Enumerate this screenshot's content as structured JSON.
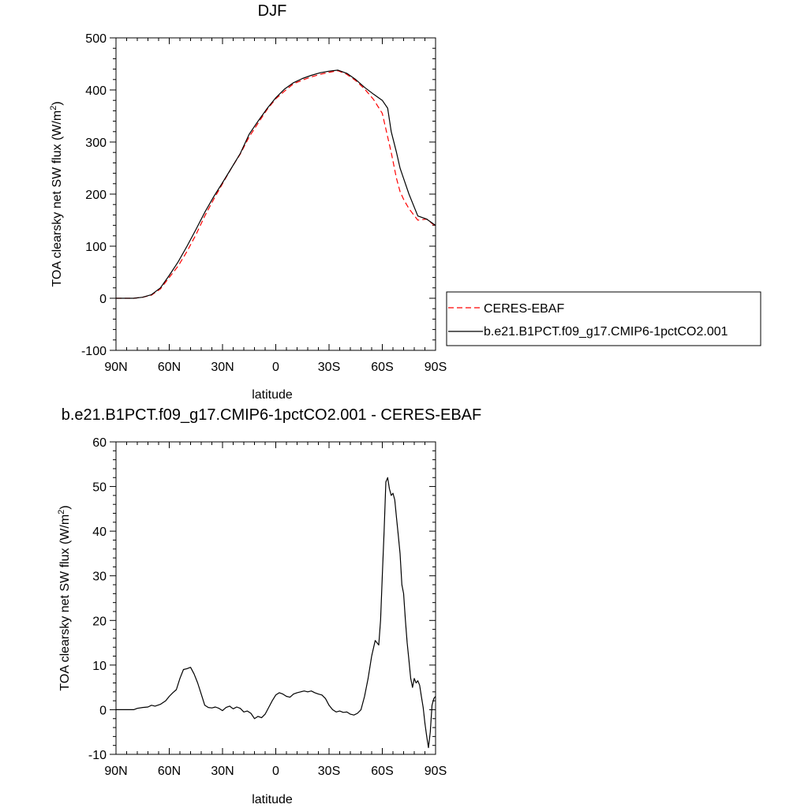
{
  "chart_data": [
    {
      "type": "line",
      "title": "DJF",
      "xlabel": "latitude",
      "ylabel": {
        "main": "TOA clearsky net SW flux (W/m",
        "sup": "2",
        "end": ")"
      },
      "xlim": [
        -90,
        90
      ],
      "ylim": [
        -100,
        500
      ],
      "xticks": [
        -90,
        -60,
        -30,
        0,
        30,
        60,
        90
      ],
      "xticklabels": [
        "90N",
        "60N",
        "30N",
        "0",
        "30S",
        "60S",
        "90S"
      ],
      "yticks": [
        -100,
        0,
        100,
        200,
        300,
        400,
        500
      ],
      "yticklabels": [
        "-100",
        "0",
        "100",
        "200",
        "300",
        "400",
        "500"
      ],
      "grid": false,
      "legend_placement": "right",
      "series": [
        {
          "name": "CERES-EBAF",
          "color": "#ff0000",
          "style": "dashed",
          "x": [
            -90,
            -85,
            -80,
            -75,
            -70,
            -65,
            -60,
            -55,
            -50,
            -45,
            -40,
            -35,
            -30,
            -25,
            -20,
            -15,
            -10,
            -5,
            0,
            5,
            10,
            15,
            20,
            25,
            30,
            35,
            40,
            45,
            50,
            55,
            60,
            65,
            68,
            70,
            72,
            75,
            80,
            85,
            90
          ],
          "y": [
            0,
            0,
            0,
            2,
            6,
            18,
            40,
            62,
            90,
            122,
            158,
            190,
            220,
            250,
            277,
            310,
            336,
            362,
            383,
            398,
            412,
            419,
            425,
            430,
            434,
            437,
            430,
            418,
            402,
            382,
            355,
            280,
            230,
            205,
            190,
            172,
            150,
            152,
            138
          ]
        },
        {
          "name": "b.e21.B1PCT.f09_g17.CMIP6-1pctCO2.001",
          "color": "#000000",
          "style": "solid",
          "x": [
            -90,
            -85,
            -80,
            -75,
            -70,
            -65,
            -60,
            -55,
            -50,
            -45,
            -40,
            -35,
            -30,
            -25,
            -20,
            -15,
            -10,
            -5,
            0,
            5,
            10,
            15,
            20,
            25,
            30,
            35,
            40,
            45,
            50,
            55,
            60,
            63,
            65,
            68,
            70,
            72,
            75,
            80,
            85,
            90
          ],
          "y": [
            0,
            0,
            0,
            2,
            7,
            20,
            44,
            70,
            100,
            132,
            165,
            195,
            222,
            250,
            278,
            315,
            340,
            364,
            385,
            402,
            414,
            422,
            428,
            433,
            436,
            438,
            432,
            420,
            405,
            392,
            380,
            365,
            320,
            280,
            250,
            230,
            200,
            158,
            152,
            140
          ]
        }
      ]
    },
    {
      "type": "line",
      "title": "b.e21.B1PCT.f09_g17.CMIP6-1pctCO2.001 - CERES-EBAF",
      "xlabel": "latitude",
      "ylabel": {
        "main": "TOA clearsky net SW flux (W/m",
        "sup": "2",
        "end": ")"
      },
      "xlim": [
        -90,
        90
      ],
      "ylim": [
        -10,
        60
      ],
      "xticks": [
        -90,
        -60,
        -30,
        0,
        30,
        60,
        90
      ],
      "xticklabels": [
        "90N",
        "60N",
        "30N",
        "0",
        "30S",
        "60S",
        "90S"
      ],
      "yticks": [
        -10,
        0,
        10,
        20,
        30,
        40,
        50,
        60
      ],
      "yticklabels": [
        "-10",
        "0",
        "10",
        "20",
        "30",
        "40",
        "50",
        "60"
      ],
      "grid": false,
      "series": [
        {
          "color": "#000000",
          "style": "solid",
          "x": [
            -90,
            -85,
            -80,
            -78,
            -75,
            -72,
            -70,
            -68,
            -65,
            -62,
            -60,
            -58,
            -56,
            -54,
            -52,
            -50,
            -48,
            -46,
            -44,
            -42,
            -40,
            -38,
            -36,
            -34,
            -32,
            -30,
            -28,
            -26,
            -24,
            -22,
            -20,
            -18,
            -16,
            -14,
            -12,
            -10,
            -8,
            -6,
            -4,
            -2,
            0,
            2,
            4,
            6,
            8,
            10,
            12,
            14,
            16,
            18,
            20,
            22,
            24,
            26,
            28,
            30,
            32,
            34,
            36,
            38,
            40,
            42,
            44,
            46,
            48,
            50,
            52,
            54,
            56,
            58,
            59,
            60,
            61,
            62,
            63,
            64,
            65,
            66,
            67,
            68,
            69,
            70,
            71,
            72,
            73,
            74,
            75,
            76,
            77,
            78,
            79,
            80,
            81,
            82,
            83,
            84,
            85,
            86,
            87,
            88,
            89,
            90
          ],
          "y": [
            0,
            0,
            0,
            0.3,
            0.5,
            0.6,
            1,
            0.8,
            1.2,
            2,
            3,
            3.8,
            4.5,
            7,
            9,
            9.2,
            9.5,
            8,
            6,
            3.5,
            1,
            0.5,
            0.4,
            0.6,
            0.3,
            -0.2,
            0.5,
            0.8,
            0.2,
            0.6,
            0.3,
            -0.5,
            -0.3,
            -0.8,
            -2,
            -1.5,
            -1.8,
            -1,
            0.5,
            2,
            3.3,
            3.8,
            3.5,
            3,
            2.8,
            3.5,
            3.8,
            4,
            4.2,
            4,
            4.2,
            3.8,
            3.5,
            3.3,
            2.5,
            1,
            0,
            -0.5,
            -0.3,
            -0.6,
            -0.5,
            -1,
            -1.2,
            -0.8,
            0,
            3,
            7,
            12,
            15.5,
            14.5,
            20,
            30,
            40,
            51,
            52,
            49.5,
            48,
            48.5,
            47,
            43,
            39,
            35,
            28,
            26,
            20,
            15,
            11,
            7,
            5,
            7,
            6,
            6.5,
            5.5,
            3,
            0.5,
            -3,
            -6,
            -8.5,
            -5,
            1,
            2.5,
            3
          ]
        }
      ]
    }
  ]
}
